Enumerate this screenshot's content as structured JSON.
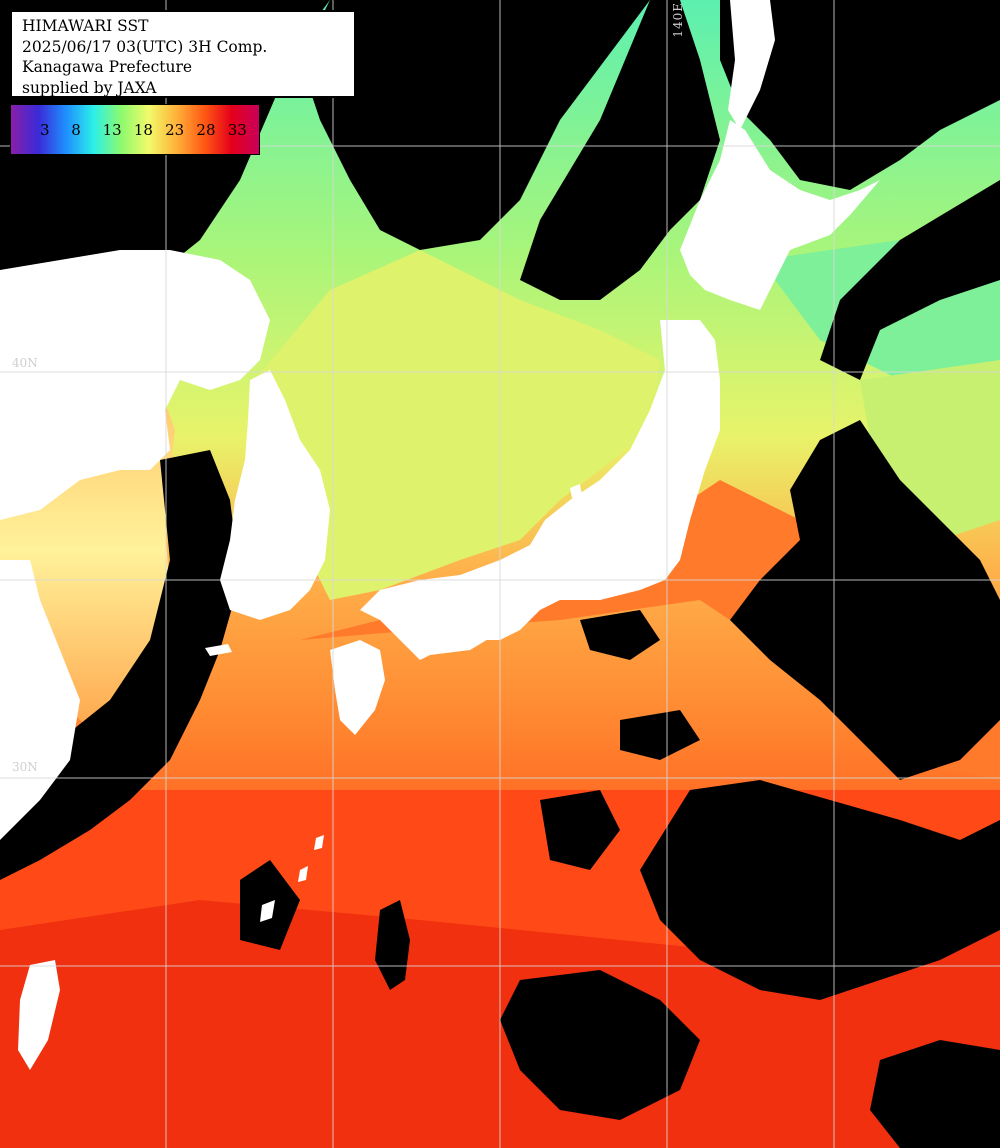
{
  "header": {
    "title": "HIMAWARI SST",
    "datetime": "2025/06/17 03(UTC) 3H Comp.",
    "region": "Kanagawa Prefecture",
    "supplier": "supplied by JAXA"
  },
  "colorbar": {
    "ticks": [
      "3",
      "8",
      "13",
      "18",
      "23",
      "28",
      "33"
    ],
    "gradient_colors": [
      "#8a1ea8",
      "#3a2bd8",
      "#1f8fff",
      "#2bf0e8",
      "#8dfa6e",
      "#f2fa6a",
      "#ffb23a",
      "#ff5a14",
      "#e5001a",
      "#c8005a"
    ]
  },
  "grid_labels": {
    "longitude_140": "140E",
    "latitude_40": "40N",
    "latitude_30": "30N"
  },
  "colors": {
    "land": "#ffffff",
    "cloud": "#000000",
    "grid": "#d9d9d9",
    "sst_cold_north": "#7ef08a",
    "sst_japan_sea": "#d9f36e",
    "sst_mid": "#ff9a3a",
    "sst_south": "#ff4818",
    "sst_far_south": "#f02a10"
  }
}
